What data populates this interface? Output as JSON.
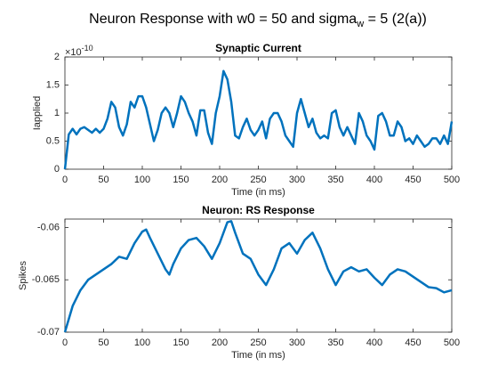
{
  "title": [
    "Neuron Response with w0 = 50 and sigma",
    "w",
    " = 5 (2(a))"
  ],
  "chart_data": [
    {
      "type": "line",
      "title": "Synaptic Current",
      "xlabel": "Time (in ms)",
      "ylabel": "Iapplied",
      "y_exponent": [
        "×10",
        "-10"
      ],
      "color": "#0072bd",
      "xlim": [
        0,
        500
      ],
      "ylim": [
        0,
        2
      ],
      "xticks": [
        0,
        50,
        100,
        150,
        200,
        250,
        300,
        350,
        400,
        450,
        500
      ],
      "yticks": [
        0,
        0.5,
        1,
        1.5,
        2
      ],
      "x": [
        0,
        5,
        10,
        15,
        20,
        25,
        30,
        35,
        40,
        45,
        50,
        55,
        60,
        65,
        70,
        75,
        80,
        85,
        90,
        95,
        100,
        105,
        110,
        115,
        120,
        125,
        130,
        135,
        140,
        145,
        150,
        155,
        160,
        165,
        170,
        175,
        180,
        185,
        190,
        195,
        200,
        205,
        210,
        215,
        220,
        225,
        230,
        235,
        240,
        245,
        250,
        255,
        260,
        265,
        270,
        275,
        280,
        285,
        290,
        295,
        300,
        305,
        310,
        315,
        320,
        325,
        330,
        335,
        340,
        345,
        350,
        355,
        360,
        365,
        370,
        375,
        380,
        385,
        390,
        395,
        400,
        405,
        410,
        415,
        420,
        425,
        430,
        435,
        440,
        445,
        450,
        455,
        460,
        465,
        470,
        475,
        480,
        485,
        490,
        495,
        500
      ],
      "values": [
        0,
        0.62,
        0.72,
        0.62,
        0.72,
        0.75,
        0.7,
        0.65,
        0.72,
        0.65,
        0.72,
        0.9,
        1.2,
        1.1,
        0.75,
        0.6,
        0.8,
        1.2,
        1.1,
        1.3,
        1.3,
        1.1,
        0.8,
        0.5,
        0.7,
        1.0,
        1.1,
        1.0,
        0.75,
        1.0,
        1.3,
        1.2,
        1.0,
        0.85,
        0.6,
        1.05,
        1.05,
        0.65,
        0.45,
        1.0,
        1.3,
        1.75,
        1.6,
        1.2,
        0.6,
        0.55,
        0.75,
        0.9,
        0.7,
        0.6,
        0.7,
        0.85,
        0.55,
        0.9,
        1.0,
        1.0,
        0.85,
        0.6,
        0.5,
        0.4,
        1.0,
        1.25,
        1.0,
        0.75,
        0.9,
        0.65,
        0.55,
        0.6,
        0.55,
        1.0,
        1.05,
        0.75,
        0.6,
        0.75,
        0.6,
        0.45,
        1.0,
        0.85,
        0.6,
        0.5,
        0.35,
        0.95,
        1.0,
        0.85,
        0.6,
        0.6,
        0.85,
        0.75,
        0.5,
        0.55,
        0.45,
        0.6,
        0.5,
        0.4,
        0.45,
        0.55,
        0.55,
        0.45,
        0.6,
        0.45,
        0.85
      ]
    },
    {
      "type": "line",
      "title": "Neuron: RS Response",
      "xlabel": "Time (in ms)",
      "ylabel": "Spikes",
      "color": "#0072bd",
      "xlim": [
        0,
        500
      ],
      "ylim": [
        -0.07,
        -0.0592
      ],
      "xticks": [
        0,
        50,
        100,
        150,
        200,
        250,
        300,
        350,
        400,
        450,
        500
      ],
      "yticks": [
        -0.07,
        -0.065,
        -0.06
      ],
      "x": [
        0,
        10,
        20,
        30,
        40,
        50,
        60,
        70,
        80,
        90,
        100,
        105,
        110,
        120,
        130,
        135,
        140,
        150,
        160,
        170,
        180,
        190,
        200,
        210,
        215,
        220,
        230,
        240,
        250,
        260,
        270,
        280,
        290,
        300,
        310,
        320,
        330,
        340,
        350,
        360,
        370,
        380,
        390,
        400,
        410,
        420,
        430,
        440,
        450,
        460,
        470,
        480,
        490,
        500
      ],
      "values": [
        -0.07,
        -0.0675,
        -0.066,
        -0.065,
        -0.0645,
        -0.064,
        -0.0635,
        -0.0628,
        -0.063,
        -0.0615,
        -0.0604,
        -0.0602,
        -0.061,
        -0.0625,
        -0.064,
        -0.0645,
        -0.0635,
        -0.062,
        -0.0612,
        -0.061,
        -0.0618,
        -0.063,
        -0.0615,
        -0.0595,
        -0.0594,
        -0.0605,
        -0.0625,
        -0.063,
        -0.0645,
        -0.0655,
        -0.064,
        -0.062,
        -0.0615,
        -0.0625,
        -0.0612,
        -0.0605,
        -0.062,
        -0.064,
        -0.0655,
        -0.0642,
        -0.0638,
        -0.0642,
        -0.064,
        -0.0648,
        -0.0655,
        -0.0645,
        -0.064,
        -0.0642,
        -0.0647,
        -0.0652,
        -0.0657,
        -0.0658,
        -0.0662,
        -0.066
      ]
    }
  ]
}
